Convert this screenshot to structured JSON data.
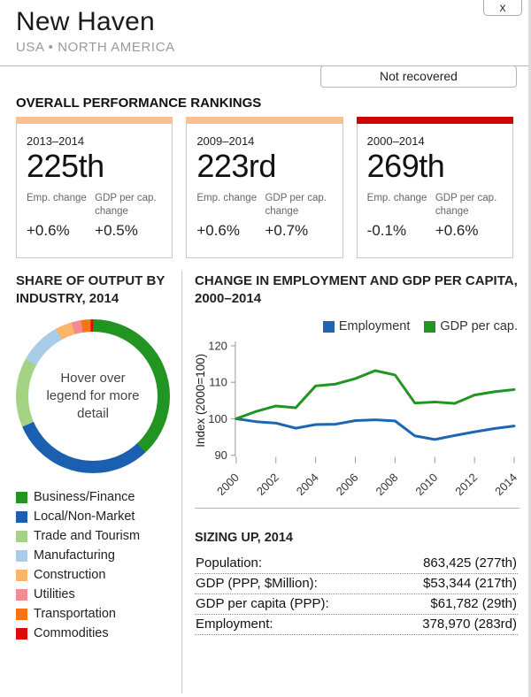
{
  "header": {
    "title": "New Haven",
    "subtitle": "USA • NORTH AMERICA",
    "close_label": "x",
    "status_badge": "Not recovered"
  },
  "rankings": {
    "heading": "OVERALL PERFORMANCE RANKINGS",
    "cards": [
      {
        "period": "2013–2014",
        "rank": "225th",
        "emp_label": "Emp. change",
        "gdp_label": "GDP per cap. change",
        "emp_change": "+0.6%",
        "gdp_change": "+0.5%",
        "bar_color": "#F7C191"
      },
      {
        "period": "2009–2014",
        "rank": "223rd",
        "emp_label": "Emp. change",
        "gdp_label": "GDP per cap. change",
        "emp_change": "+0.6%",
        "gdp_change": "+0.7%",
        "bar_color": "#F7C191"
      },
      {
        "period": "2000–2014",
        "rank": "269th",
        "emp_label": "Emp. change",
        "gdp_label": "GDP per cap. change",
        "emp_change": "-0.1%",
        "gdp_change": "+0.6%",
        "bar_color": "#CC0505"
      }
    ]
  },
  "chart_data": [
    {
      "type": "pie",
      "donut": true,
      "title": "SHARE OF OUTPUT BY INDUSTRY, 2014",
      "center_text": "Hover over legend for more detail",
      "categories": [
        "Business/Finance",
        "Local/Non-Market",
        "Trade and Tourism",
        "Manufacturing",
        "Construction",
        "Utilities",
        "Transportation",
        "Commodities"
      ],
      "values": [
        38,
        30.5,
        14.5,
        9,
        3.5,
        2,
        2,
        0.5
      ],
      "colors": [
        "#229421",
        "#1A5FB0",
        "#A4D385",
        "#A9CCE9",
        "#FBB567",
        "#F28B92",
        "#F87412",
        "#DC0A0A"
      ],
      "legend_position": "bottom"
    },
    {
      "type": "line",
      "title": "CHANGE IN EMPLOYMENT AND GDP PER CAPITA, 2000–2014",
      "x": [
        2000,
        2001,
        2002,
        2003,
        2004,
        2005,
        2006,
        2007,
        2008,
        2009,
        2010,
        2011,
        2012,
        2013,
        2014
      ],
      "series": [
        {
          "name": "Employment",
          "color": "#1E66B2",
          "values": [
            100,
            99.2,
            98.8,
            97.4,
            98.4,
            98.5,
            99.5,
            99.7,
            99.4,
            95.3,
            94.3,
            95.4,
            96.4,
            97.3,
            98
          ]
        },
        {
          "name": "GDP per cap.",
          "color": "#229421",
          "values": [
            100,
            102,
            103.5,
            103,
            109,
            109.5,
            111,
            113.2,
            112,
            104.3,
            104.6,
            104.2,
            106.5,
            107.4,
            108
          ]
        }
      ],
      "ylabel": "Index (2000=100)",
      "ylim": [
        90,
        120
      ],
      "yticks": [
        90,
        100,
        110,
        120
      ],
      "xticks": [
        2000,
        2002,
        2004,
        2006,
        2008,
        2010,
        2012,
        2014
      ],
      "legend_position": "top",
      "grid": false
    }
  ],
  "sizing": {
    "heading": "SIZING UP, 2014",
    "rows": [
      {
        "label": "Population:",
        "value": "863,425 (277th)"
      },
      {
        "label": "GDP (PPP, $Million):",
        "value": "$53,344 (217th)"
      },
      {
        "label": "GDP per capita (PPP):",
        "value": "$61,782 (29th)"
      },
      {
        "label": "Employment:",
        "value": "378,970 (283rd)"
      }
    ]
  }
}
